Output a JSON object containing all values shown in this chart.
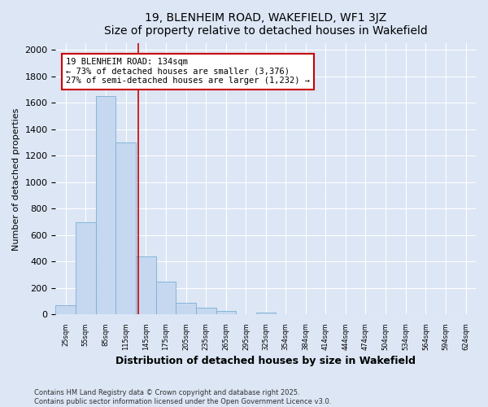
{
  "title_line1": "19, BLENHEIM ROAD, WAKEFIELD, WF1 3JZ",
  "title_line2": "Size of property relative to detached houses in Wakefield",
  "xlabel": "Distribution of detached houses by size in Wakefield",
  "ylabel": "Number of detached properties",
  "bin_edges": [
    10,
    40,
    70,
    100,
    130,
    160,
    190,
    220,
    250,
    280,
    310,
    339,
    369,
    399,
    429,
    459,
    489,
    519,
    549,
    579,
    609,
    639
  ],
  "values": [
    70,
    700,
    1650,
    1300,
    440,
    250,
    90,
    50,
    25,
    0,
    15,
    0,
    0,
    0,
    0,
    0,
    0,
    0,
    0,
    0,
    0
  ],
  "tick_positions": [
    25,
    55,
    85,
    115,
    145,
    175,
    205,
    235,
    265,
    295,
    325,
    354,
    384,
    414,
    444,
    474,
    504,
    534,
    564,
    594,
    624
  ],
  "tick_labels": [
    "25sqm",
    "55sqm",
    "85sqm",
    "115sqm",
    "145sqm",
    "175sqm",
    "205sqm",
    "235sqm",
    "265sqm",
    "295sqm",
    "325sqm",
    "354sqm",
    "384sqm",
    "414sqm",
    "444sqm",
    "474sqm",
    "504sqm",
    "534sqm",
    "564sqm",
    "594sqm",
    "624sqm"
  ],
  "bar_color": "#c5d8f0",
  "bar_edge_color": "#7bafd4",
  "vline_x": 134,
  "vline_color": "#cc0000",
  "annotation_text": "19 BLENHEIM ROAD: 134sqm\n← 73% of detached houses are smaller (3,376)\n27% of semi-detached houses are larger (1,232) →",
  "annotation_box_color": "white",
  "annotation_box_edge_color": "#cc0000",
  "ylim": [
    0,
    2050
  ],
  "yticks": [
    0,
    200,
    400,
    600,
    800,
    1000,
    1200,
    1400,
    1600,
    1800,
    2000
  ],
  "bg_color": "#dce6f5",
  "plot_bg_color": "#dce6f5",
  "footer_text": "Contains HM Land Registry data © Crown copyright and database right 2025.\nContains public sector information licensed under the Open Government Licence v3.0.",
  "grid_color": "#ffffff"
}
